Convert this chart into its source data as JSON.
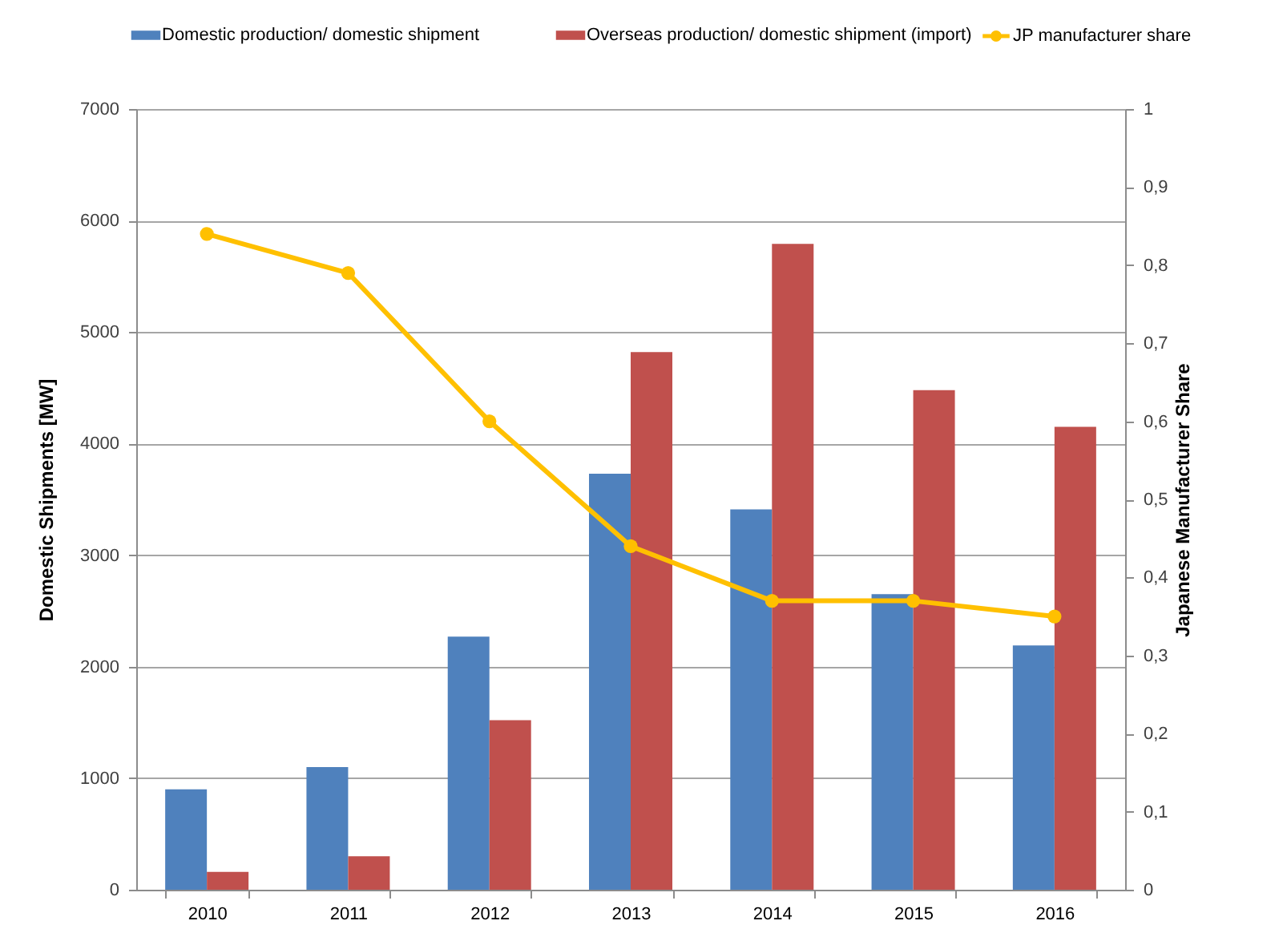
{
  "chart_data": {
    "type": "bar",
    "categories": [
      "2010",
      "2011",
      "2012",
      "2013",
      "2014",
      "2015",
      "2016"
    ],
    "ylabel": "Domestic Shipments [MW]",
    "y2label": "Japanese Manufacturer Share",
    "ylim": [
      0,
      7000
    ],
    "yticks": [
      0,
      1000,
      2000,
      3000,
      4000,
      5000,
      6000,
      7000
    ],
    "y2lim": [
      0,
      1
    ],
    "y2ticks": [
      0,
      {
        "value": 0.1,
        "label": "0,1"
      },
      {
        "value": 0.2,
        "label": "0,2"
      },
      {
        "value": 0.3,
        "label": "0,3"
      },
      {
        "value": 0.4,
        "label": "0,4"
      },
      {
        "value": 0.5,
        "label": "0,5"
      },
      {
        "value": 0.6,
        "label": "0,6"
      },
      {
        "value": 0.7,
        "label": "0,7"
      },
      {
        "value": 0.8,
        "label": "0,8"
      },
      {
        "value": 0.9,
        "label": "0,9"
      },
      1
    ],
    "series": [
      {
        "name": "Domestic production/ domestic shipment",
        "color": "#4f81bd",
        "values": [
          900,
          1100,
          2270,
          3730,
          3410,
          2650,
          2190
        ]
      },
      {
        "name": "Overseas production/ domestic shipment (import)",
        "color": "#c0504d",
        "values": [
          160,
          300,
          1520,
          4820,
          5790,
          4480,
          4150
        ]
      },
      {
        "name": "JP manufacturer share",
        "type": "line",
        "axis": "y2",
        "color": "#ffc000",
        "marker": "circle",
        "values": [
          0.84,
          0.79,
          0.6,
          0.44,
          0.37,
          0.37,
          0.35
        ]
      }
    ],
    "grid": "y",
    "legend": "top"
  }
}
